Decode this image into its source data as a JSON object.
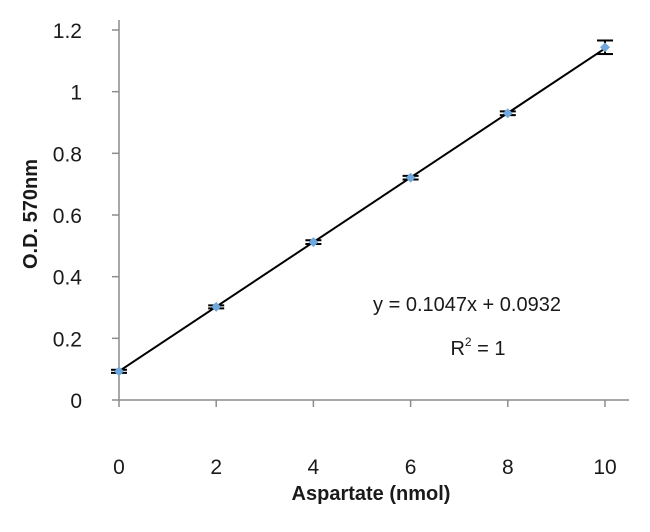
{
  "chart_data": {
    "type": "scatter",
    "title": "",
    "xlabel": "Aspartate (nmol)",
    "ylabel": "O.D. 570nm",
    "xlim": [
      0,
      10.5
    ],
    "ylim": [
      0,
      1.2
    ],
    "xticks": [
      0,
      2,
      4,
      6,
      8,
      10
    ],
    "xtick_labels": [
      "0",
      "2",
      "4",
      "6",
      "8",
      "10"
    ],
    "yticks": [
      0,
      0.2,
      0.4,
      0.6,
      0.8,
      1,
      1.2
    ],
    "ytick_labels": [
      "0",
      "0.2",
      "0.4",
      "0.6",
      "0.8",
      "1",
      "1.2"
    ],
    "grid": false,
    "series": [
      {
        "x": [
          0,
          2,
          4,
          6,
          8,
          10
        ],
        "y": [
          0.093,
          0.302,
          0.512,
          0.721,
          0.93,
          1.144
        ],
        "error": [
          0.005,
          0.005,
          0.006,
          0.006,
          0.006,
          0.022
        ],
        "marker_color": "#6fa8dc",
        "errorbar_color": "#000000"
      }
    ],
    "trendline": {
      "slope": 0.1047,
      "intercept": 0.0932,
      "x_range": [
        0,
        10
      ],
      "color": "#000000"
    },
    "annotations": {
      "equation": "y = 0.1047x + 0.0932",
      "r2_prefix": "R",
      "r2_exponent": "2",
      "r2_suffix": " = 1"
    }
  }
}
